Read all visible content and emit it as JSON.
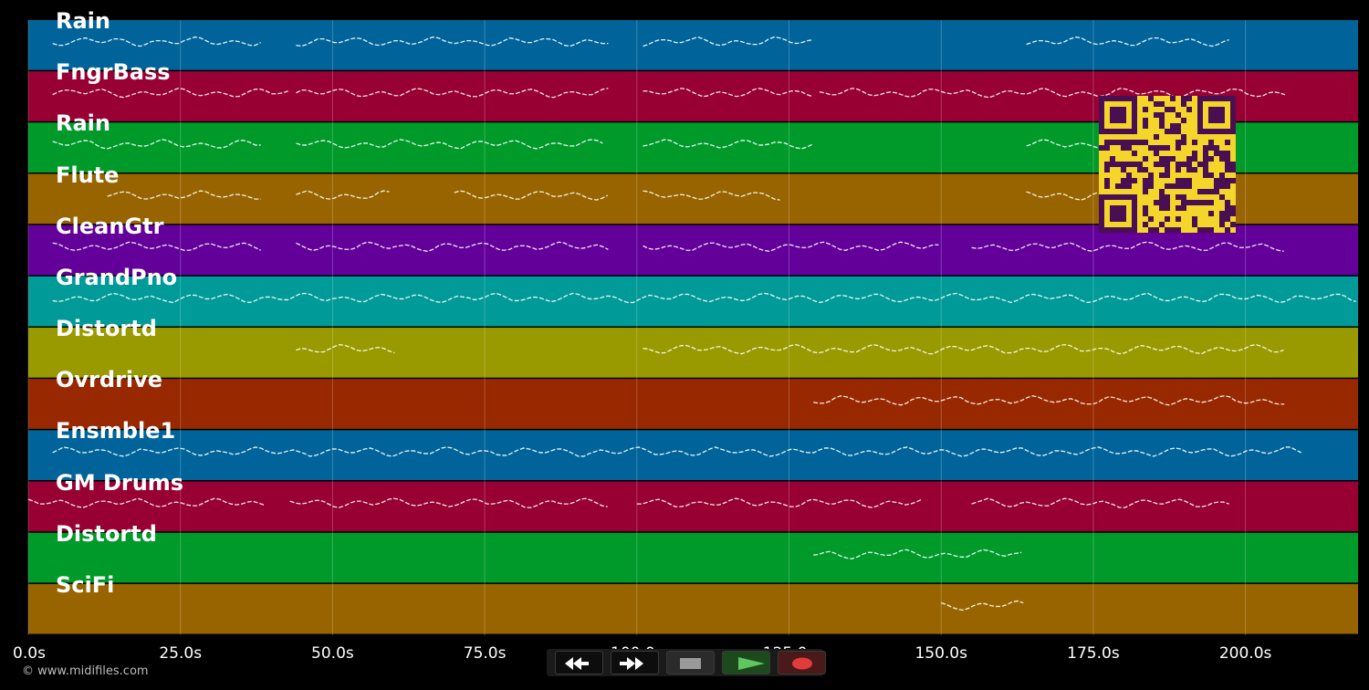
{
  "colors": {
    "background": "#000000",
    "track_colors": [
      "#00649a",
      "#980033",
      "#009a2a",
      "#986400",
      "#63009a",
      "#009a98",
      "#989a00",
      "#982800"
    ],
    "note_color": "#ffffff",
    "qr_background": "#f4d62a",
    "qr_foreground": "#4a0f52"
  },
  "tracks": [
    {
      "name": "Rain",
      "color": "#00649a"
    },
    {
      "name": "FngrBass",
      "color": "#980033"
    },
    {
      "name": "Rain",
      "color": "#009a2a"
    },
    {
      "name": "Flute",
      "color": "#986400"
    },
    {
      "name": "CleanGtr",
      "color": "#63009a"
    },
    {
      "name": "GrandPno",
      "color": "#009a98"
    },
    {
      "name": "Distortd",
      "color": "#989a00"
    },
    {
      "name": "Ovrdrive",
      "color": "#982800"
    },
    {
      "name": "Ensmble1",
      "color": "#00649a"
    },
    {
      "name": "GM Drums",
      "color": "#980033"
    },
    {
      "name": "Distortd",
      "color": "#009a2a"
    },
    {
      "name": "SciFi",
      "color": "#986400"
    }
  ],
  "time_axis": {
    "unit": "s",
    "range": [
      0,
      218.5
    ],
    "ticks": [
      "0.0s",
      "25.0s",
      "50.0s",
      "75.0s",
      "100.0s",
      "125.0s",
      "150.0s",
      "175.0s",
      "200.0s"
    ],
    "tick_values": [
      0,
      25,
      50,
      75,
      100,
      125,
      150,
      175,
      200
    ]
  },
  "note_segments": [
    [
      [
        4,
        39
      ],
      [
        44,
        96
      ],
      [
        101,
        129
      ],
      [
        164,
        198
      ]
    ],
    [
      [
        4,
        43
      ],
      [
        44,
        96
      ],
      [
        101,
        129
      ],
      [
        130,
        207
      ]
    ],
    [
      [
        4,
        39
      ],
      [
        44,
        95
      ],
      [
        101,
        129
      ],
      [
        164,
        198
      ]
    ],
    [
      [
        13,
        39
      ],
      [
        44,
        60
      ],
      [
        70,
        96
      ],
      [
        101,
        124
      ],
      [
        164,
        198
      ]
    ],
    [
      [
        4,
        39
      ],
      [
        44,
        96
      ],
      [
        101,
        150
      ],
      [
        155,
        207
      ]
    ],
    [
      [
        4,
        218.5
      ]
    ],
    [
      [
        44,
        61
      ],
      [
        101,
        207
      ]
    ],
    [
      [
        129,
        207
      ]
    ],
    [
      [
        4,
        210
      ]
    ],
    [
      [
        0,
        39
      ],
      [
        43,
        96
      ],
      [
        100,
        147
      ],
      [
        155,
        198
      ]
    ],
    [
      [
        129,
        164
      ]
    ],
    [
      [
        150,
        164
      ]
    ]
  ],
  "transport": {
    "rewind": "rewind-icon",
    "fast_forward": "fast-forward-icon",
    "stop": "stop-icon",
    "play": "play-icon",
    "record": "record-icon"
  },
  "copyright": "© www.midifiles.com"
}
